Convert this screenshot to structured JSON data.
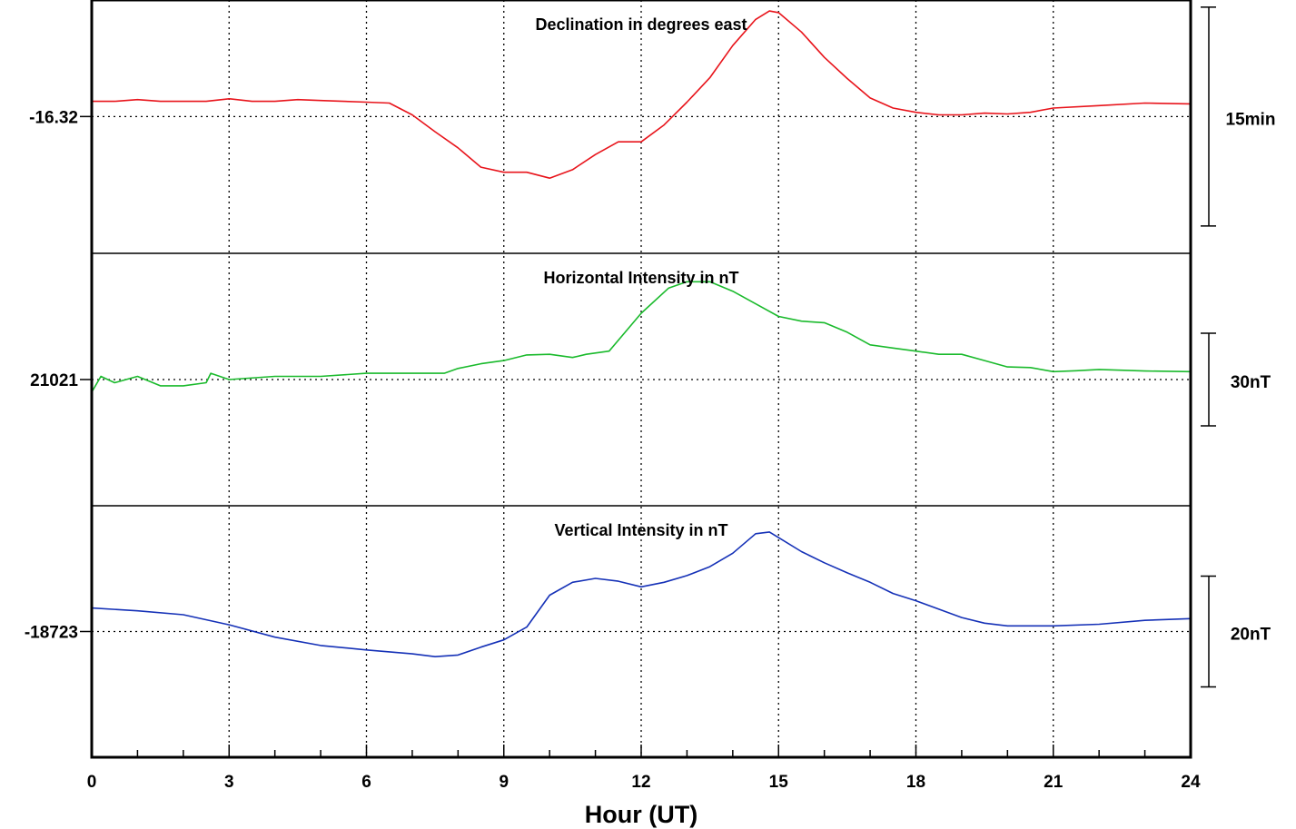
{
  "chart_data": {
    "type": "line",
    "xlabel": "Hour (UT)",
    "x_ticks": [
      "0",
      "3",
      "6",
      "9",
      "12",
      "15",
      "18",
      "21",
      "24"
    ],
    "xlim": [
      0,
      24
    ],
    "grid": true,
    "panels": [
      {
        "title": "Declination in degrees east",
        "baseline_label": "-16.32",
        "scale_label": "15min",
        "color": "#e8141b",
        "unit_range": 30,
        "baseline_frac": 0.46,
        "points": [
          [
            0,
            1.8
          ],
          [
            0.5,
            1.8
          ],
          [
            1,
            2.0
          ],
          [
            1.5,
            1.8
          ],
          [
            2,
            1.8
          ],
          [
            2.5,
            1.8
          ],
          [
            3,
            2.1
          ],
          [
            3.5,
            1.8
          ],
          [
            4,
            1.8
          ],
          [
            4.5,
            2.0
          ],
          [
            5,
            1.9
          ],
          [
            5.5,
            1.8
          ],
          [
            6,
            1.7
          ],
          [
            6.5,
            1.6
          ],
          [
            7,
            0.2
          ],
          [
            7.5,
            -1.8
          ],
          [
            8,
            -3.7
          ],
          [
            8.5,
            -6.0
          ],
          [
            9,
            -6.6
          ],
          [
            9.5,
            -6.6
          ],
          [
            10,
            -7.3
          ],
          [
            10.5,
            -6.3
          ],
          [
            11,
            -4.5
          ],
          [
            11.5,
            -3.0
          ],
          [
            12,
            -3.0
          ],
          [
            12.5,
            -1.0
          ],
          [
            13,
            1.7
          ],
          [
            13.5,
            4.6
          ],
          [
            14,
            8.4
          ],
          [
            14.5,
            11.5
          ],
          [
            14.8,
            12.5
          ],
          [
            15,
            12.3
          ],
          [
            15.5,
            10.0
          ],
          [
            16,
            7.0
          ],
          [
            16.5,
            4.5
          ],
          [
            17,
            2.2
          ],
          [
            17.5,
            1.0
          ],
          [
            18,
            0.5
          ],
          [
            18.5,
            0.2
          ],
          [
            19,
            0.2
          ],
          [
            19.5,
            0.4
          ],
          [
            20,
            0.3
          ],
          [
            20.5,
            0.5
          ],
          [
            21,
            1.0
          ],
          [
            22,
            1.3
          ],
          [
            23,
            1.6
          ],
          [
            24,
            1.5
          ]
        ]
      },
      {
        "title": "Horizontal Intensity in nT",
        "baseline_label": "21021",
        "scale_label": "30nT",
        "color": "#1aba2c",
        "unit_range": 80,
        "baseline_frac": 0.5,
        "points": [
          [
            0,
            -4
          ],
          [
            0.2,
            1
          ],
          [
            0.5,
            -1
          ],
          [
            1,
            1
          ],
          [
            1.5,
            -2
          ],
          [
            2,
            -2
          ],
          [
            2.5,
            -1
          ],
          [
            2.6,
            2
          ],
          [
            3,
            0
          ],
          [
            4,
            1
          ],
          [
            5,
            1
          ],
          [
            6,
            2
          ],
          [
            7,
            2
          ],
          [
            7.7,
            2
          ],
          [
            8,
            3.5
          ],
          [
            8.5,
            5
          ],
          [
            9,
            6
          ],
          [
            9.5,
            7.8
          ],
          [
            10,
            8
          ],
          [
            10.5,
            7
          ],
          [
            10.8,
            8
          ],
          [
            11.3,
            9
          ],
          [
            12,
            21
          ],
          [
            12.6,
            29
          ],
          [
            13,
            31
          ],
          [
            13.5,
            31
          ],
          [
            14,
            28
          ],
          [
            14.5,
            24
          ],
          [
            15,
            20
          ],
          [
            15.5,
            18.5
          ],
          [
            16,
            18
          ],
          [
            16.5,
            15
          ],
          [
            17,
            11
          ],
          [
            17.5,
            10
          ],
          [
            18,
            9
          ],
          [
            18.5,
            8
          ],
          [
            19,
            8
          ],
          [
            19.5,
            6
          ],
          [
            20,
            4
          ],
          [
            20.5,
            3.8
          ],
          [
            21,
            2.5
          ],
          [
            21.5,
            2.8
          ],
          [
            22,
            3.2
          ],
          [
            23,
            2.7
          ],
          [
            24,
            2.5
          ]
        ]
      },
      {
        "title": "Vertical Intensity in nT",
        "baseline_label": "-18723",
        "scale_label": "20nT",
        "color": "#1531b7",
        "unit_range": 45,
        "baseline_frac": 0.5,
        "points": [
          [
            0,
            4.2
          ],
          [
            1,
            3.7
          ],
          [
            2,
            3.0
          ],
          [
            3,
            1.2
          ],
          [
            4,
            -1.0
          ],
          [
            5,
            -2.5
          ],
          [
            6,
            -3.3
          ],
          [
            7,
            -4.0
          ],
          [
            7.5,
            -4.5
          ],
          [
            8,
            -4.2
          ],
          [
            8.5,
            -2.8
          ],
          [
            9,
            -1.5
          ],
          [
            9.5,
            0.8
          ],
          [
            10,
            6.5
          ],
          [
            10.5,
            8.8
          ],
          [
            11,
            9.5
          ],
          [
            11.5,
            9.0
          ],
          [
            12,
            8.0
          ],
          [
            12.5,
            8.8
          ],
          [
            13,
            10.0
          ],
          [
            13.5,
            11.6
          ],
          [
            14,
            14.0
          ],
          [
            14.5,
            17.5
          ],
          [
            14.8,
            17.8
          ],
          [
            15,
            16.8
          ],
          [
            15.5,
            14.3
          ],
          [
            16,
            12.3
          ],
          [
            16.5,
            10.5
          ],
          [
            17,
            8.8
          ],
          [
            17.5,
            6.8
          ],
          [
            18,
            5.5
          ],
          [
            18.5,
            4.0
          ],
          [
            19,
            2.5
          ],
          [
            19.5,
            1.5
          ],
          [
            20,
            1.0
          ],
          [
            20.5,
            1.0
          ],
          [
            21,
            1.0
          ],
          [
            22,
            1.3
          ],
          [
            23,
            2.0
          ],
          [
            24,
            2.3
          ]
        ]
      }
    ]
  }
}
